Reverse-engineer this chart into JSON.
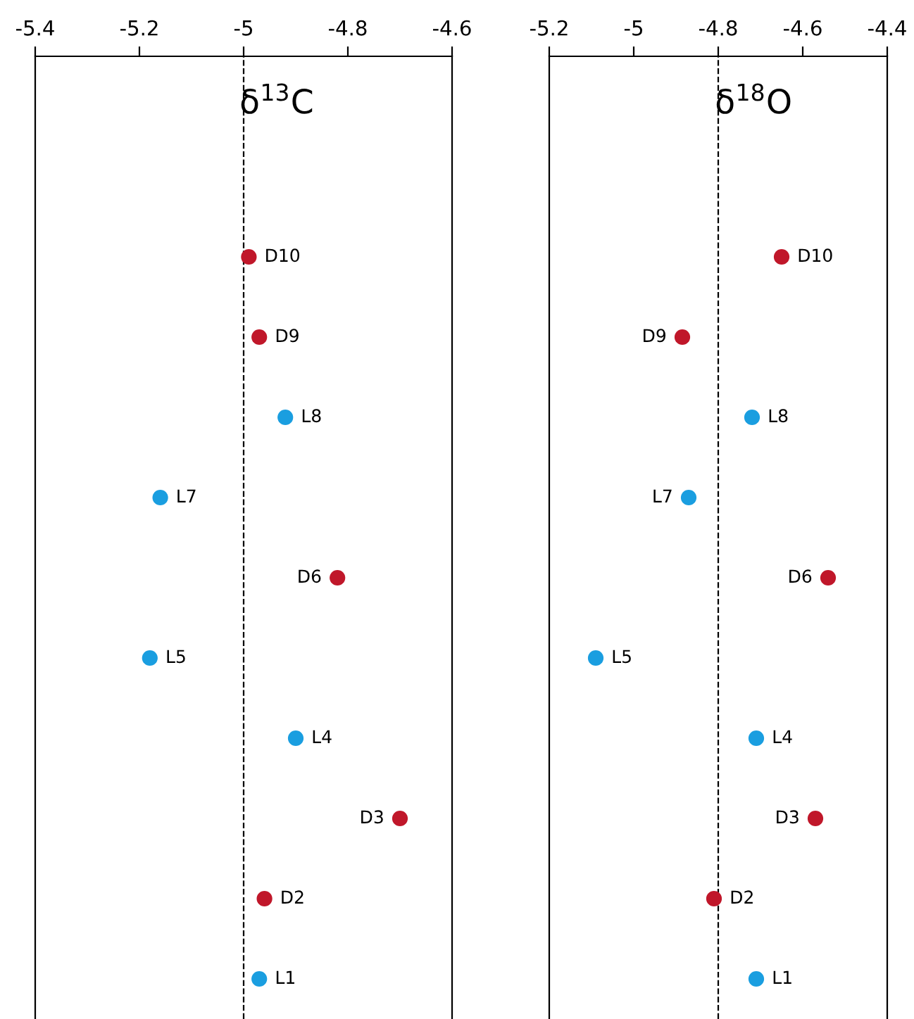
{
  "chart_data": [
    {
      "type": "scatter",
      "orientation": "horizontal",
      "title": "δ$^{13}$C",
      "categories": [
        null,
        null,
        null,
        null,
        null,
        null,
        null,
        null,
        null,
        null,
        null,
        null
      ],
      "values": [
        null,
        null,
        -4.99,
        -4.97,
        -4.92,
        -5.16,
        -4.82,
        -5.18,
        -4.9,
        -4.7,
        -4.96,
        -4.97
      ],
      "value_labels": [
        null,
        null,
        "D10",
        "D9",
        "L8",
        "L7",
        "D6",
        "L5",
        "L4",
        "D3",
        "D2",
        "L1"
      ],
      "colors": [
        "#c0172a",
        "#c0172a",
        "#c0172a",
        "#c0172a",
        "#1a9ee0",
        "#1a9ee0",
        "#c0172a",
        "#1a9ee0",
        "#1a9ee0",
        "#c0172a",
        "#c0172a",
        "#1a9ee0"
      ],
      "marker": "circle",
      "xlim": [
        -5.4,
        -4.6
      ],
      "xticks": [
        -5.4,
        -5.2,
        {
          "value": -5,
          "label": "-5"
        },
        -4.8,
        -4.6
      ],
      "tick_labels": "x",
      "ref_lines": [
        {
          "axis": "x",
          "value": -5,
          "color": "#000000",
          "line_style": "dashed"
        }
      ]
    },
    {
      "type": "scatter",
      "orientation": "horizontal",
      "title": "δ$^{18}$O",
      "categories": [
        null,
        null,
        null,
        null,
        null,
        null,
        null,
        null,
        null,
        null,
        null,
        null
      ],
      "values": [
        null,
        null,
        -4.65,
        -4.885,
        -4.72,
        -4.87,
        -4.54,
        -5.09,
        -4.71,
        -4.57,
        -4.81,
        -4.71
      ],
      "value_labels": [
        null,
        null,
        "D10",
        "D9",
        "L8",
        "L7",
        "D6",
        "L5",
        "L4",
        "D3",
        "D2",
        "L1"
      ],
      "colors": [
        "#c0172a",
        "#c0172a",
        "#c0172a",
        "#c0172a",
        "#1a9ee0",
        "#1a9ee0",
        "#c0172a",
        "#1a9ee0",
        "#1a9ee0",
        "#c0172a",
        "#c0172a",
        "#1a9ee0"
      ],
      "marker": "circle",
      "xlim": [
        -5.2,
        -4.4
      ],
      "xticks": [
        -5.2,
        {
          "value": -5,
          "label": "-5"
        },
        -4.8,
        -4.6,
        -4.4
      ],
      "tick_labels": "x",
      "ref_lines": [
        {
          "axis": "x",
          "value": -4.8,
          "color": "#000000",
          "line_style": "dashed"
        }
      ]
    }
  ]
}
